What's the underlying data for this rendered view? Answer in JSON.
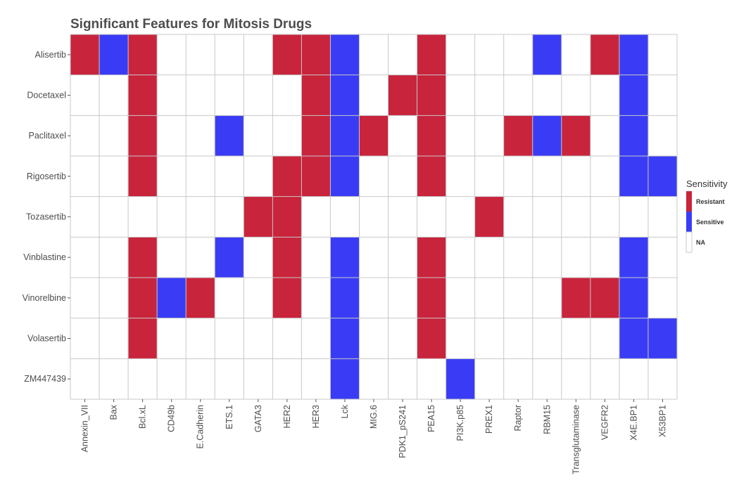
{
  "chart_data": {
    "type": "heatmap",
    "title": "Significant Features for Mitosis Drugs",
    "xlabel": "",
    "ylabel": "",
    "grid": true,
    "legend": {
      "title": "Sensitivity",
      "position": "right",
      "entries": [
        {
          "label": "Resistant",
          "color": "#c8243c"
        },
        {
          "label": "Sensitive",
          "color": "#3a3cf5"
        },
        {
          "label": "NA",
          "color": "#ffffff"
        }
      ]
    },
    "x_categories": [
      "Annexin_VII",
      "Bax",
      "Bcl.xL",
      "CD49b",
      "E.Cadherin",
      "ETS.1",
      "GATA3",
      "HER2",
      "HER3",
      "Lck",
      "MIG.6",
      "PDK1_pS241",
      "PEA15",
      "PI3K.p85",
      "PREX1",
      "Raptor",
      "RBM15",
      "Transglutaminase",
      "VEGFR2",
      "X4E.BP1",
      "X53BP1"
    ],
    "y_categories": [
      "Alisertib",
      "Docetaxel",
      "Paclitaxel",
      "Rigosertib",
      "Tozasertib",
      "Vinblastine",
      "Vinorelbine ",
      "Volasertib",
      "ZM447439"
    ],
    "values": [
      [
        "Resistant",
        "Sensitive",
        "Resistant",
        "NA",
        "NA",
        "NA",
        "NA",
        "Resistant",
        "Resistant",
        "Sensitive",
        "NA",
        "NA",
        "Resistant",
        "NA",
        "NA",
        "NA",
        "Sensitive",
        "NA",
        "Resistant",
        "Sensitive",
        "NA"
      ],
      [
        "NA",
        "NA",
        "Resistant",
        "NA",
        "NA",
        "NA",
        "NA",
        "NA",
        "Resistant",
        "Sensitive",
        "NA",
        "Resistant",
        "Resistant",
        "NA",
        "NA",
        "NA",
        "NA",
        "NA",
        "NA",
        "Sensitive",
        "NA"
      ],
      [
        "NA",
        "NA",
        "Resistant",
        "NA",
        "NA",
        "Sensitive",
        "NA",
        "NA",
        "Resistant",
        "Sensitive",
        "Resistant",
        "NA",
        "Resistant",
        "NA",
        "NA",
        "Resistant",
        "Sensitive",
        "Resistant",
        "NA",
        "Sensitive",
        "NA"
      ],
      [
        "NA",
        "NA",
        "Resistant",
        "NA",
        "NA",
        "NA",
        "NA",
        "Resistant",
        "Resistant",
        "Sensitive",
        "NA",
        "NA",
        "Resistant",
        "NA",
        "NA",
        "NA",
        "NA",
        "NA",
        "NA",
        "Sensitive",
        "Sensitive"
      ],
      [
        "NA",
        "NA",
        "NA",
        "NA",
        "NA",
        "NA",
        "Resistant",
        "Resistant",
        "NA",
        "NA",
        "NA",
        "NA",
        "NA",
        "NA",
        "Resistant",
        "NA",
        "NA",
        "NA",
        "NA",
        "NA",
        "NA"
      ],
      [
        "NA",
        "NA",
        "Resistant",
        "NA",
        "NA",
        "Sensitive",
        "NA",
        "Resistant",
        "NA",
        "Sensitive",
        "NA",
        "NA",
        "Resistant",
        "NA",
        "NA",
        "NA",
        "NA",
        "NA",
        "NA",
        "Sensitive",
        "NA"
      ],
      [
        "NA",
        "NA",
        "Resistant",
        "Sensitive",
        "Resistant",
        "NA",
        "NA",
        "Resistant",
        "NA",
        "Sensitive",
        "NA",
        "NA",
        "Resistant",
        "NA",
        "NA",
        "NA",
        "NA",
        "Resistant",
        "Resistant",
        "Sensitive",
        "NA"
      ],
      [
        "NA",
        "NA",
        "Resistant",
        "NA",
        "NA",
        "NA",
        "NA",
        "NA",
        "NA",
        "Sensitive",
        "NA",
        "NA",
        "Resistant",
        "NA",
        "NA",
        "NA",
        "NA",
        "NA",
        "NA",
        "Sensitive",
        "Sensitive"
      ],
      [
        "NA",
        "NA",
        "NA",
        "NA",
        "NA",
        "NA",
        "NA",
        "NA",
        "NA",
        "Sensitive",
        "NA",
        "NA",
        "NA",
        "Sensitive",
        "NA",
        "NA",
        "NA",
        "NA",
        "NA",
        "NA",
        "NA"
      ]
    ]
  }
}
